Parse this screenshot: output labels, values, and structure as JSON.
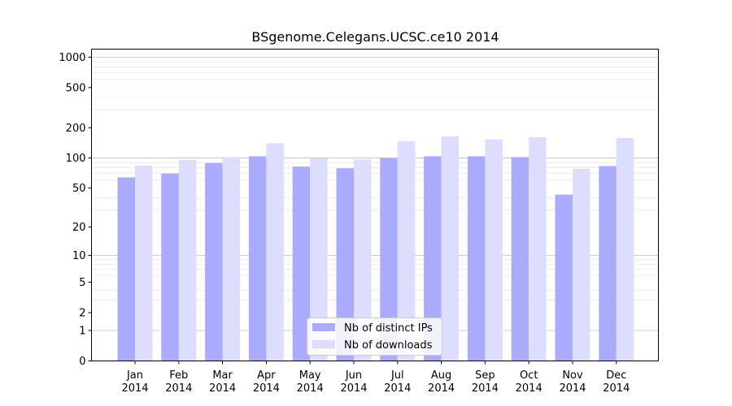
{
  "chart_data": {
    "type": "bar",
    "title": "BSgenome.Celegans.UCSC.ce10 2014",
    "xlabel": "",
    "ylabel": "",
    "y_scale": "log(1+y)",
    "ylim": [
      0,
      1200
    ],
    "y_ticks": [
      {
        "value": 0,
        "label": "0"
      },
      {
        "value": 1,
        "label": "1"
      },
      {
        "value": 2,
        "label": "2"
      },
      {
        "value": 5,
        "label": "5"
      },
      {
        "value": 10,
        "label": "10"
      },
      {
        "value": 20,
        "label": "20"
      },
      {
        "value": 50,
        "label": "50"
      },
      {
        "value": 100,
        "label": "100"
      },
      {
        "value": 200,
        "label": "200"
      },
      {
        "value": 500,
        "label": "500"
      },
      {
        "value": 1000,
        "label": "1000"
      }
    ],
    "categories": [
      {
        "month": "Jan",
        "year": "2014"
      },
      {
        "month": "Feb",
        "year": "2014"
      },
      {
        "month": "Mar",
        "year": "2014"
      },
      {
        "month": "Apr",
        "year": "2014"
      },
      {
        "month": "May",
        "year": "2014"
      },
      {
        "month": "Jun",
        "year": "2014"
      },
      {
        "month": "Jul",
        "year": "2014"
      },
      {
        "month": "Aug",
        "year": "2014"
      },
      {
        "month": "Sep",
        "year": "2014"
      },
      {
        "month": "Oct",
        "year": "2014"
      },
      {
        "month": "Nov",
        "year": "2014"
      },
      {
        "month": "Dec",
        "year": "2014"
      }
    ],
    "series": [
      {
        "name": "Nb of distinct IPs",
        "color": "#aaaaff",
        "values": [
          64,
          70,
          89,
          104,
          82,
          79,
          100,
          104,
          104,
          102,
          43,
          83
        ]
      },
      {
        "name": "Nb of downloads",
        "color": "#ddddff",
        "values": [
          84,
          96,
          102,
          140,
          99,
          97,
          147,
          164,
          153,
          161,
          78,
          158
        ]
      }
    ],
    "grid": true,
    "legend_position": "bottom-center"
  }
}
